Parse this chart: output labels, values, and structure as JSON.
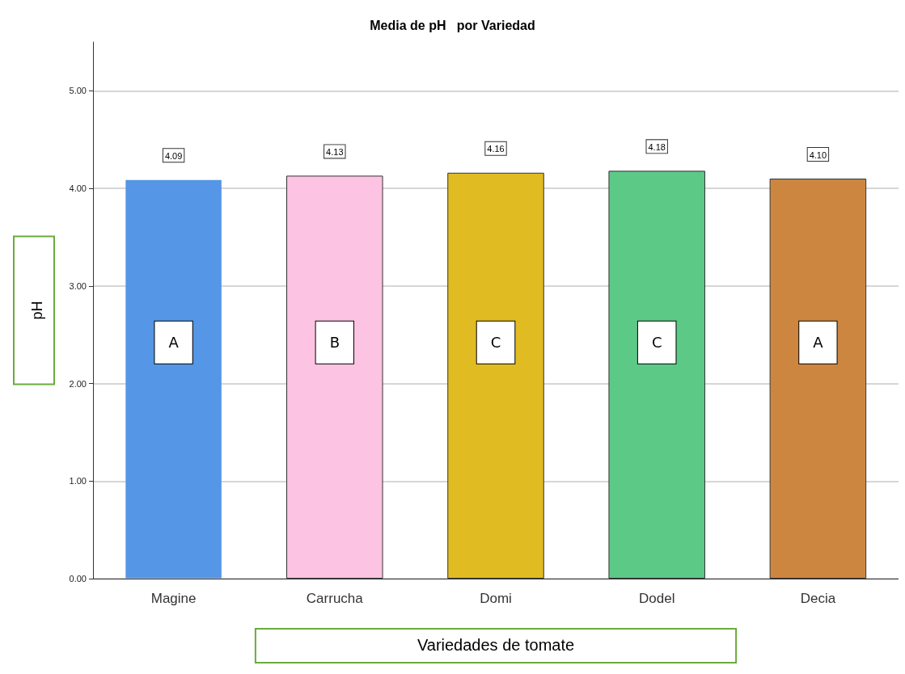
{
  "chart_data": {
    "type": "bar",
    "title": "Media de pH   por Variedad",
    "xlabel": "Variedades de tomate",
    "ylabel": "pH",
    "categories": [
      "Magine",
      "Carrucha",
      "Domi",
      "Dodel",
      "Decia"
    ],
    "values": [
      4.09,
      4.13,
      4.16,
      4.18,
      4.1
    ],
    "colors": [
      "#5596e6",
      "#fcc3e2",
      "#e1bb22",
      "#5cc987",
      "#cd8640"
    ],
    "value_labels": [
      "4.09",
      "4.13",
      "4.16",
      "4.18",
      "4.10"
    ],
    "ylim": [
      0,
      5.5
    ],
    "yticks": [
      {
        "value": 0,
        "label": "0.00"
      },
      {
        "value": 1,
        "label": "1.00"
      },
      {
        "value": 2,
        "label": "2.00"
      },
      {
        "value": 3,
        "label": "3.00"
      },
      {
        "value": 4,
        "label": "4.00"
      },
      {
        "value": 5,
        "label": "5.00"
      }
    ],
    "grid": true,
    "annotations": [
      "A",
      "B",
      "C",
      "C",
      "A"
    ]
  }
}
